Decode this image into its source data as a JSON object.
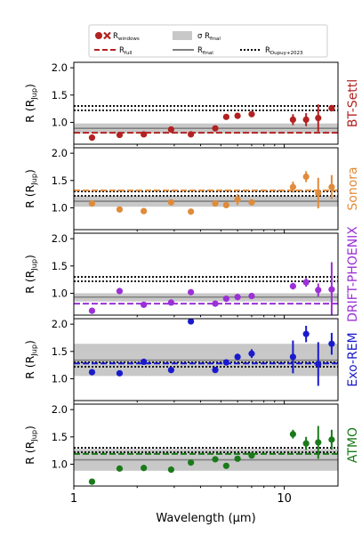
{
  "legend": {
    "items": [
      {
        "label": "R",
        "sub": "windows",
        "kind": "marker"
      },
      {
        "label": "σ R",
        "sub": "final",
        "kind": "band"
      },
      {
        "label": "",
        "sub": "",
        "kind": "none"
      },
      {
        "label": "R",
        "sub": "full",
        "kind": "dashed"
      },
      {
        "label": "R",
        "sub": "final",
        "kind": "solid"
      },
      {
        "label": "R",
        "sub": "Dupuy+2023",
        "kind": "dotted"
      }
    ]
  },
  "colors": {
    "final_line": "#808080",
    "band": "#c8c8c8",
    "dupuy": "#000000",
    "marker_legend": "#b22222"
  },
  "chart_data": {
    "type": "scatter",
    "xlabel": "Wavelength (μm)",
    "xscale": "log",
    "xlim": [
      1.0,
      18.0
    ],
    "xticks": [
      1,
      10
    ],
    "xtick_labels": [
      "1",
      "10"
    ],
    "ylabel": "R (R",
    "ylabel_sub": "Jup",
    "ylabel_tail": ")",
    "ylim": [
      0.6,
      2.1
    ],
    "yticks": [
      1.0,
      1.5,
      2.0
    ],
    "ytick_labels": [
      "1.0",
      "1.5",
      "2.0"
    ],
    "dupuy": [
      1.22,
      1.3
    ],
    "panels": [
      {
        "name": "BT-Settl",
        "color": "#b22222",
        "full": 0.81,
        "final": 0.89,
        "band": [
          0.8,
          0.98
        ],
        "points": [
          {
            "x": 1.22,
            "y": 0.72,
            "err": 0.0
          },
          {
            "x": 1.65,
            "y": 0.77,
            "err": 0.0
          },
          {
            "x": 2.15,
            "y": 0.78,
            "err": 0.0
          },
          {
            "x": 2.9,
            "y": 0.87,
            "err": 0.02
          },
          {
            "x": 3.6,
            "y": 0.78,
            "err": 0.0
          },
          {
            "x": 4.7,
            "y": 0.89,
            "err": 0.02
          },
          {
            "x": 5.3,
            "y": 1.1,
            "err": 0.04
          },
          {
            "x": 6.0,
            "y": 1.12,
            "err": 0.04
          },
          {
            "x": 7.0,
            "y": 1.15,
            "err": 0.04
          },
          {
            "x": 11.0,
            "y": 1.05,
            "err": 0.1
          },
          {
            "x": 12.7,
            "y": 1.05,
            "err": 0.12
          },
          {
            "x": 14.5,
            "y": 1.08,
            "err": 0.25
          },
          {
            "x": 16.8,
            "y": 1.26,
            "err": 0.06
          }
        ]
      },
      {
        "name": "Sonora",
        "color": "#e08b3a",
        "full": 1.32,
        "final": 1.12,
        "band": [
          1.02,
          1.22
        ],
        "points": [
          {
            "x": 1.22,
            "y": 1.08,
            "err": 0.0
          },
          {
            "x": 1.65,
            "y": 0.97,
            "err": 0.0
          },
          {
            "x": 2.15,
            "y": 0.94,
            "err": 0.0
          },
          {
            "x": 2.9,
            "y": 1.1,
            "err": 0.03
          },
          {
            "x": 3.6,
            "y": 0.93,
            "err": 0.0
          },
          {
            "x": 4.7,
            "y": 1.08,
            "err": 0.03
          },
          {
            "x": 5.3,
            "y": 1.05,
            "err": 0.04
          },
          {
            "x": 6.0,
            "y": 1.15,
            "err": 0.1
          },
          {
            "x": 7.0,
            "y": 1.1,
            "err": 0.04
          },
          {
            "x": 11.0,
            "y": 1.38,
            "err": 0.1
          },
          {
            "x": 12.7,
            "y": 1.57,
            "err": 0.1
          },
          {
            "x": 14.5,
            "y": 1.27,
            "err": 0.28
          },
          {
            "x": 16.8,
            "y": 1.38,
            "err": 0.22
          }
        ]
      },
      {
        "name": "DRIFT-PHOENIX",
        "color": "#9b30d6",
        "full": 0.81,
        "final": 0.93,
        "band": [
          0.85,
          1.0
        ],
        "points": [
          {
            "x": 1.22,
            "y": 0.68,
            "err": 0.0
          },
          {
            "x": 1.65,
            "y": 1.04,
            "err": 0.0
          },
          {
            "x": 2.15,
            "y": 0.79,
            "err": 0.0
          },
          {
            "x": 2.9,
            "y": 0.83,
            "err": 0.02
          },
          {
            "x": 3.6,
            "y": 1.02,
            "err": 0.0
          },
          {
            "x": 4.7,
            "y": 0.81,
            "err": 0.02
          },
          {
            "x": 5.3,
            "y": 0.9,
            "err": 0.04
          },
          {
            "x": 6.0,
            "y": 0.93,
            "err": 0.04
          },
          {
            "x": 7.0,
            "y": 0.95,
            "err": 0.04
          },
          {
            "x": 11.0,
            "y": 1.13,
            "err": 0.06
          },
          {
            "x": 12.7,
            "y": 1.2,
            "err": 0.08
          },
          {
            "x": 14.5,
            "y": 1.06,
            "err": 0.12
          },
          {
            "x": 16.8,
            "y": 1.07,
            "err": 0.5
          }
        ]
      },
      {
        "name": "Exo-REM",
        "color": "#1a1acd",
        "full": 1.28,
        "final": 1.34,
        "band": [
          1.05,
          1.64
        ],
        "points": [
          {
            "x": 1.22,
            "y": 1.12,
            "err": 0.0
          },
          {
            "x": 1.65,
            "y": 1.1,
            "err": 0.0
          },
          {
            "x": 2.15,
            "y": 1.31,
            "err": 0.0
          },
          {
            "x": 2.9,
            "y": 1.16,
            "err": 0.02
          },
          {
            "x": 3.6,
            "y": 2.05,
            "err": 0.0
          },
          {
            "x": 4.7,
            "y": 1.16,
            "err": 0.03
          },
          {
            "x": 5.3,
            "y": 1.3,
            "err": 0.05
          },
          {
            "x": 6.0,
            "y": 1.4,
            "err": 0.06
          },
          {
            "x": 7.0,
            "y": 1.46,
            "err": 0.08
          },
          {
            "x": 11.0,
            "y": 1.4,
            "err": 0.3
          },
          {
            "x": 12.7,
            "y": 1.82,
            "err": 0.15
          },
          {
            "x": 14.5,
            "y": 1.27,
            "err": 0.4
          },
          {
            "x": 16.8,
            "y": 1.64,
            "err": 0.2
          }
        ]
      },
      {
        "name": "ATMO",
        "color": "#1a7a1a",
        "full": 1.19,
        "final": 1.08,
        "band": [
          0.88,
          1.28
        ],
        "points": [
          {
            "x": 1.22,
            "y": 0.68,
            "err": 0.0
          },
          {
            "x": 1.65,
            "y": 0.92,
            "err": 0.0
          },
          {
            "x": 2.15,
            "y": 0.93,
            "err": 0.0
          },
          {
            "x": 2.9,
            "y": 0.9,
            "err": 0.02
          },
          {
            "x": 3.6,
            "y": 1.03,
            "err": 0.0
          },
          {
            "x": 4.7,
            "y": 1.09,
            "err": 0.03
          },
          {
            "x": 5.3,
            "y": 0.97,
            "err": 0.04
          },
          {
            "x": 6.0,
            "y": 1.1,
            "err": 0.05
          },
          {
            "x": 7.0,
            "y": 1.16,
            "err": 0.05
          },
          {
            "x": 11.0,
            "y": 1.55,
            "err": 0.08
          },
          {
            "x": 12.7,
            "y": 1.38,
            "err": 0.12
          },
          {
            "x": 14.5,
            "y": 1.4,
            "err": 0.3
          },
          {
            "x": 16.8,
            "y": 1.45,
            "err": 0.18
          }
        ]
      }
    ]
  }
}
